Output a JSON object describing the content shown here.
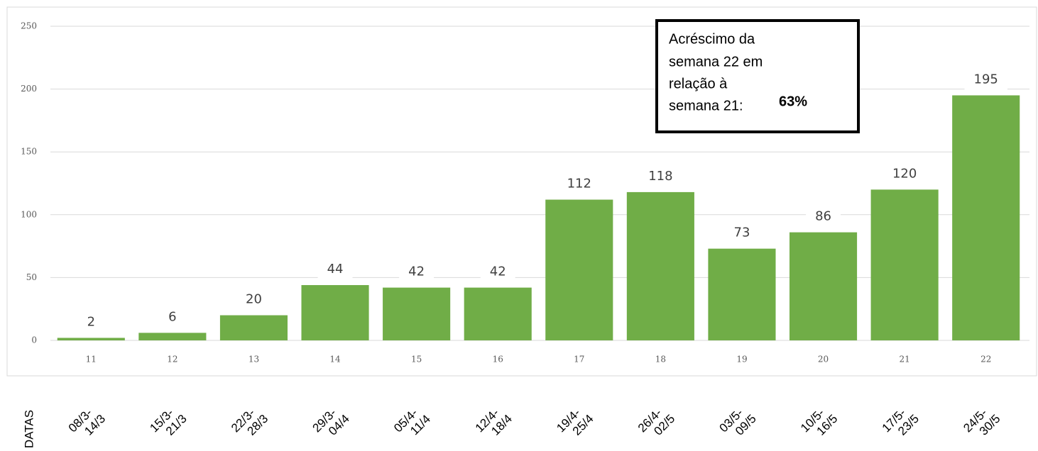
{
  "chart_data": {
    "type": "bar",
    "categories": [
      "11",
      "12",
      "13",
      "14",
      "15",
      "16",
      "17",
      "18",
      "19",
      "20",
      "21",
      "22"
    ],
    "values": [
      2,
      6,
      20,
      44,
      42,
      42,
      112,
      118,
      73,
      86,
      120,
      195
    ],
    "color": "#70ad47",
    "ylim": [
      0,
      250
    ],
    "yticks": [
      0,
      50,
      100,
      150,
      200,
      250
    ],
    "grid": true,
    "dates_label": "DATAS",
    "dates": [
      [
        "08/3-",
        "14/3"
      ],
      [
        "15/3-",
        "21/3"
      ],
      [
        "22/3-",
        "28/3"
      ],
      [
        "29/3-",
        "04/4"
      ],
      [
        "05/4-",
        "11/4"
      ],
      [
        "12/4-",
        "18/4"
      ],
      [
        "19/4-",
        "25/4"
      ],
      [
        "26/4-",
        "02/5"
      ],
      [
        "03/5-",
        "09/5"
      ],
      [
        "10/5-",
        "16/5"
      ],
      [
        "17/5-",
        "23/5"
      ],
      [
        "24/5-",
        "30/5"
      ]
    ],
    "annotation": {
      "lines": [
        "Acréscimo da",
        "semana 22 em",
        "relação à",
        "semana 21:"
      ],
      "highlight": "63%"
    }
  }
}
